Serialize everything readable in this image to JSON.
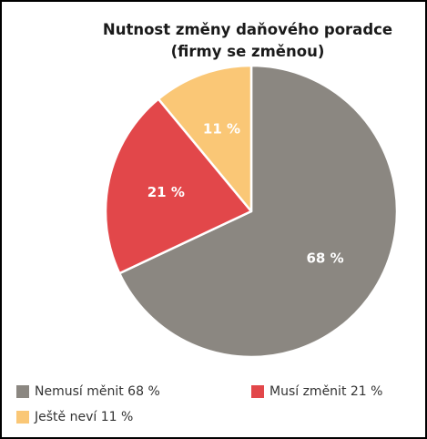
{
  "chart_data": {
    "type": "pie",
    "title_line1": "Nutnost změny daňového poradce",
    "title_line2": "(firmy se změnou)",
    "slices": [
      {
        "legend": "Nemusí měnit 68 %",
        "label": "68 %",
        "value": 68,
        "color": "#8b8781"
      },
      {
        "legend": "Musí změnit 21 %",
        "label": "21 %",
        "value": 21,
        "color": "#e2474a"
      },
      {
        "legend": "Ještě neví 11 %",
        "label": "11 %",
        "value": 11,
        "color": "#fac776"
      }
    ],
    "start_angle_deg": 0,
    "direction": "clockwise",
    "legend_position": "bottom"
  }
}
